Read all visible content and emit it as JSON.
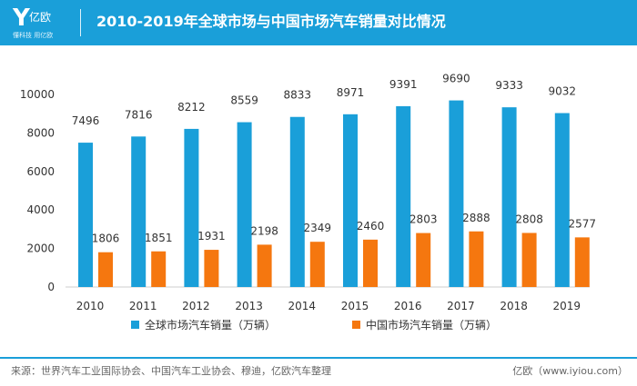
{
  "header": {
    "logo_mark": "Y",
    "logo_name": "亿欧",
    "logo_slogan": "懂科技 用亿欧",
    "title": "2010-2019年全球市场与中国市场汽车销量对比情况"
  },
  "colors": {
    "header_bg": "#1a9fd9",
    "global": "#1a9fd9",
    "china": "#f5770f"
  },
  "chart_data": {
    "type": "bar",
    "categories": [
      "2010",
      "2011",
      "2012",
      "2013",
      "2014",
      "2015",
      "2016",
      "2017",
      "2018",
      "2019"
    ],
    "series": [
      {
        "name": "全球市场汽车销量（万辆）",
        "values": [
          7496,
          7816,
          8212,
          8559,
          8833,
          8971,
          9391,
          9690,
          9333,
          9032
        ]
      },
      {
        "name": "中国市场汽车销量（万辆）",
        "values": [
          1806,
          1851,
          1931,
          2198,
          2349,
          2460,
          2803,
          2888,
          2808,
          2577
        ]
      }
    ],
    "yticks": [
      "0",
      "2000",
      "4000",
      "6000",
      "8000",
      "10000"
    ],
    "ylim": [
      0,
      10000
    ],
    "legend_position": "bottom"
  },
  "footer": {
    "source": "来源：世界汽车工业国际协会、中国汽车工业协会、穆迪，亿欧汽车整理",
    "brand": "亿欧（www.iyiou.com）"
  }
}
